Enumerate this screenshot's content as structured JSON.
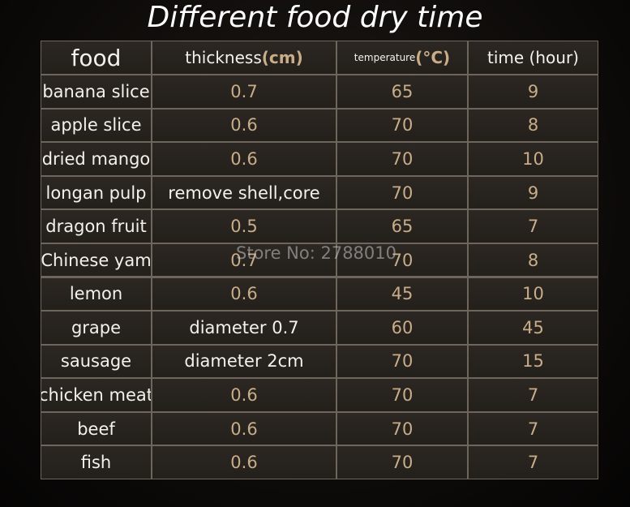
{
  "title": "Different food dry time",
  "table": {
    "header": [
      [
        "food"
      ],
      [
        "thickness",
        "(cm)"
      ],
      [
        "temperature",
        "(°C)"
      ],
      [
        "time (hour)"
      ]
    ],
    "rows": [
      [
        "banana slice",
        0.7,
        65,
        9
      ],
      [
        "apple slice",
        0.6,
        70,
        8
      ],
      [
        "dried mango",
        0.6,
        70,
        10
      ],
      [
        "longan pulp",
        "remove shell,core",
        70,
        9
      ],
      [
        "dragon fruit",
        0.5,
        65,
        7
      ],
      [
        "Chinese yam",
        0.7,
        70,
        8
      ],
      [
        "lemon",
        0.6,
        45,
        10
      ],
      [
        "grape",
        "diameter 0.7",
        60,
        45
      ],
      [
        "sausage",
        "diameter 2cm",
        70,
        15
      ],
      [
        "chicken meat",
        0.6,
        70,
        7
      ],
      [
        "beef",
        0.6,
        70,
        7
      ],
      [
        "fish",
        0.6,
        70,
        7
      ]
    ]
  },
  "watermark": "Store No: 2788010"
}
